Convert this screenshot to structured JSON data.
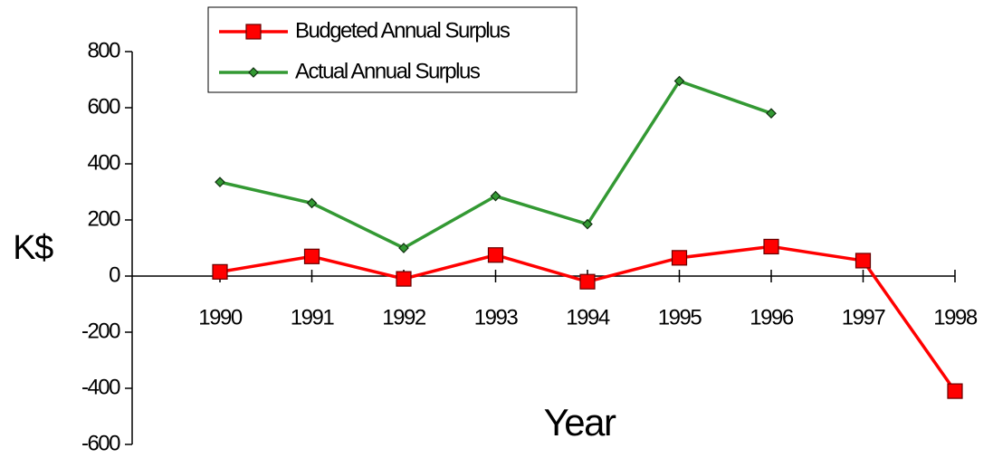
{
  "chart_data": {
    "type": "line",
    "categories": [
      "1990",
      "1991",
      "1992",
      "1993",
      "1994",
      "1995",
      "1996",
      "1997",
      "1998"
    ],
    "series": [
      {
        "name": "Budgeted Annual Surplus",
        "color": "#ff0000",
        "values": [
          15,
          70,
          -10,
          75,
          -20,
          65,
          105,
          55,
          -410
        ]
      },
      {
        "name": "Actual Annual Surplus",
        "color": "#339933",
        "values": [
          335,
          260,
          100,
          285,
          185,
          695,
          580,
          null,
          null
        ]
      }
    ],
    "ylabel": "K$",
    "xlabel": "Year",
    "ylim": [
      -600,
      800
    ],
    "yticks": [
      -600,
      -400,
      -200,
      0,
      200,
      400,
      600,
      800
    ],
    "legend": "top"
  }
}
